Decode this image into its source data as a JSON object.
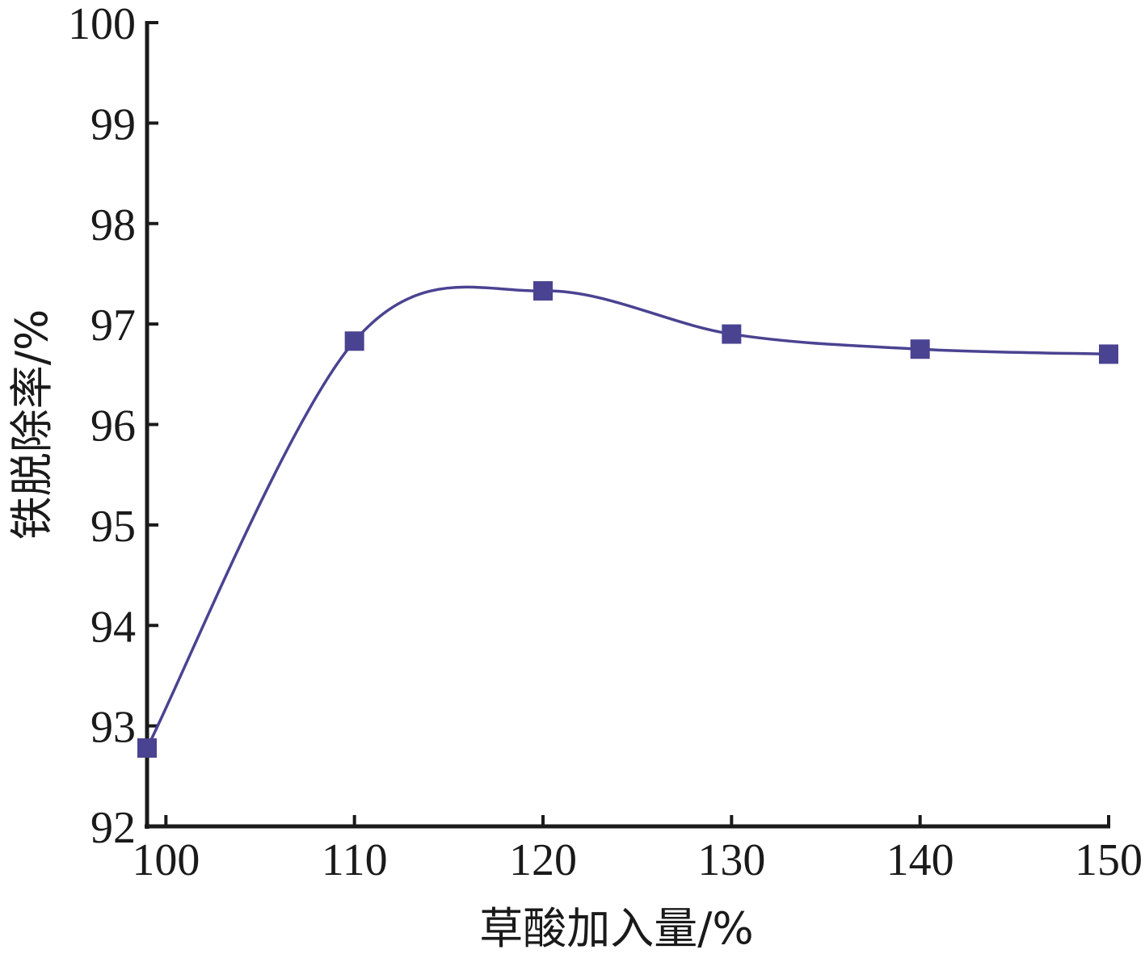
{
  "chart_data": {
    "type": "line",
    "title": "",
    "xlabel": "草酸加入量/%",
    "ylabel": "铁脱除率/%",
    "xlim": [
      99,
      150
    ],
    "ylim": [
      92,
      100
    ],
    "xticks": [
      "100",
      "110",
      "120",
      "130",
      "140",
      "150"
    ],
    "yticks": [
      "92",
      "93",
      "94",
      "95",
      "96",
      "97",
      "98",
      "99",
      "100"
    ],
    "grid": false,
    "legend": "none",
    "series": [
      {
        "color": "#4a4391",
        "marker": "square",
        "x": [
          99,
          110,
          120,
          130,
          140,
          150
        ],
        "y": [
          92.78,
          96.83,
          97.33,
          96.9,
          96.75,
          96.7
        ]
      }
    ]
  }
}
